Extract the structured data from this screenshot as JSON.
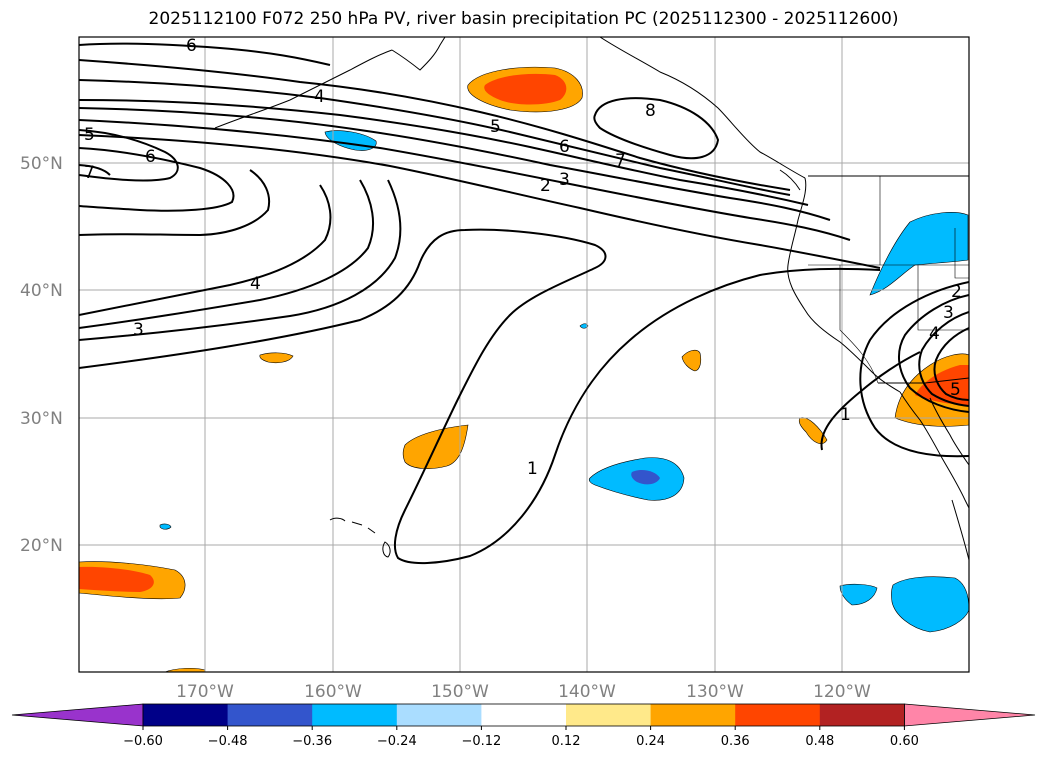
{
  "title": "2025112100 F072 250 hPa PV, river basin precipitation PC (2025112300 - 2025112600)",
  "latitude_labels": [
    "50°N",
    "40°N",
    "30°N",
    "20°N"
  ],
  "longitude_labels": [
    "170°W",
    "160°W",
    "150°W",
    "140°W",
    "130°W",
    "120°W"
  ],
  "contour_labels": [
    "6",
    "4",
    "5",
    "6",
    "7",
    "5",
    "8",
    "6",
    "7",
    "3",
    "2",
    "4",
    "3",
    "2",
    "3",
    "4",
    "1",
    "1",
    "5"
  ],
  "colorbar": {
    "tick_labels": [
      "−0.60",
      "−0.48",
      "−0.36",
      "−0.24",
      "−0.12",
      "0.12",
      "0.24",
      "0.36",
      "0.48",
      "0.60"
    ],
    "colors": [
      "#9933cc",
      "#000088",
      "#3355cc",
      "#00bbff",
      "#aaddff",
      "#ffffff",
      "#ffe98a",
      "#ffa500",
      "#ff4500",
      "#b22222",
      "#ff85a8"
    ]
  },
  "colors": {
    "contour": "#000000",
    "grid": "#a9a9a9",
    "orange": "#ffa500",
    "red_orange": "#ff4500",
    "sky_blue": "#00bbff",
    "royal_blue": "#3355cc"
  }
}
